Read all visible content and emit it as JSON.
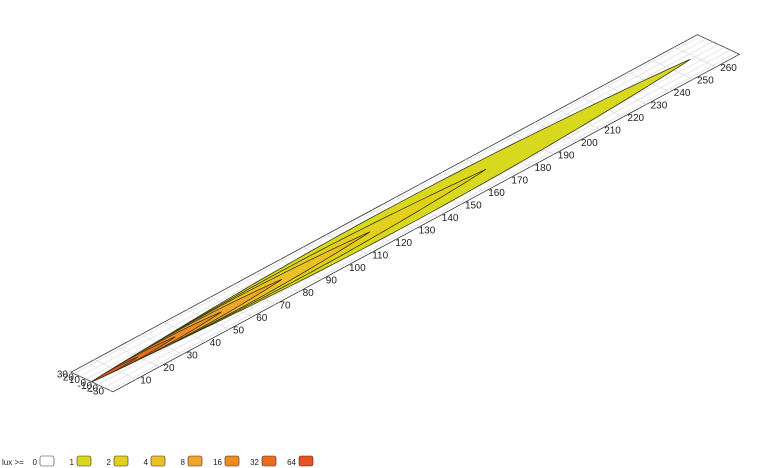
{
  "chart_data": {
    "type": "area",
    "title": "",
    "xlabel": "",
    "ylabel": "",
    "x_ticks": [
      "10",
      "20",
      "30",
      "40",
      "50",
      "60",
      "70",
      "80",
      "90",
      "100",
      "110",
      "120",
      "130",
      "140",
      "150",
      "160",
      "170",
      "180",
      "190",
      "200",
      "210",
      "220",
      "230",
      "240",
      "250",
      "260"
    ],
    "y_ticks": [
      "30",
      "20",
      "10",
      "0",
      "-10",
      "-20",
      "-30"
    ],
    "xlim": [
      0,
      270
    ],
    "ylim": [
      -35,
      35
    ],
    "grid": true,
    "legend": {
      "title": "lux >=",
      "levels": [
        "0",
        "1",
        "2",
        "4",
        "8",
        "16",
        "32",
        "64"
      ],
      "placement": "bottom-left"
    },
    "series": [
      {
        "level": 1,
        "x_start": 0,
        "x_end": 258,
        "half_width_max": 22.0,
        "color": "#d8d81e"
      },
      {
        "level": 2,
        "x_start": 0,
        "x_end": 170,
        "half_width_max": 14.0,
        "color": "#e3d01c"
      },
      {
        "level": 4,
        "x_start": 0,
        "x_end": 120,
        "half_width_max": 10.5,
        "color": "#eec027"
      },
      {
        "level": 8,
        "x_start": 0,
        "x_end": 82,
        "half_width_max": 8.0,
        "color": "#f2a528"
      },
      {
        "level": 16,
        "x_start": 0,
        "x_end": 56,
        "half_width_max": 6.0,
        "color": "#f08a22"
      },
      {
        "level": 32,
        "x_start": 0,
        "x_end": 36,
        "half_width_max": 4.2,
        "color": "#ec6d1e"
      },
      {
        "level": 64,
        "x_start": 0,
        "x_end": 20,
        "half_width_max": 2.5,
        "color": "#e65420"
      }
    ]
  }
}
